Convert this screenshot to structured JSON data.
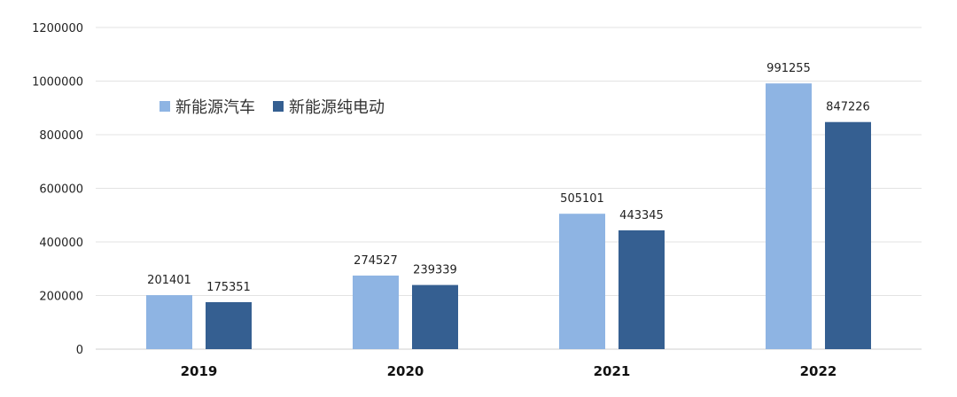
{
  "chart_data": {
    "type": "bar",
    "categories": [
      "2019",
      "2020",
      "2021",
      "2022"
    ],
    "series": [
      {
        "name": "新能源汽车",
        "values": [
          201401,
          274527,
          505101,
          991255
        ],
        "color": "#8eb4e3"
      },
      {
        "name": "新能源纯电动",
        "values": [
          175351,
          239339,
          443345,
          847226
        ],
        "color": "#355f91"
      }
    ],
    "ylim": [
      0,
      1200000
    ],
    "yticks": [
      0,
      200000,
      400000,
      600000,
      800000,
      1000000,
      1200000
    ],
    "grid": true,
    "legend_position": "top-left"
  }
}
